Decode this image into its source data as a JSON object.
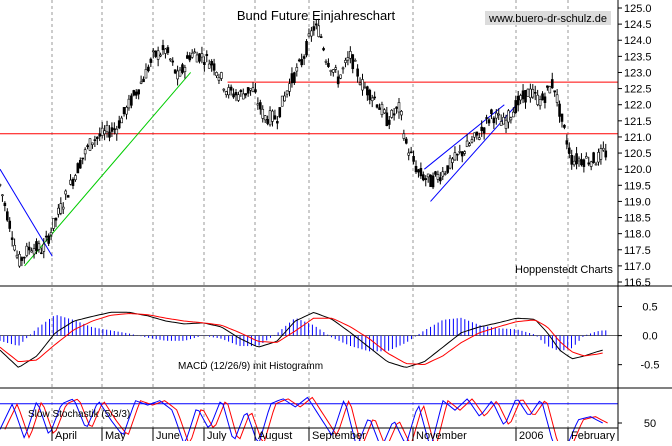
{
  "chart_data": [
    {
      "panel": "price",
      "type": "candlestick",
      "title": "Bund Future Einjahreschart",
      "watermark": "www.buero-dr-schulz.de",
      "credit": "Hoppenstedt Charts",
      "ylim": [
        116.5,
        125.0
      ],
      "yticks": [
        "116.5",
        "117.0",
        "117.5",
        "118.0",
        "118.5",
        "119.0",
        "119.5",
        "120.0",
        "120.5",
        "121.0",
        "121.5",
        "122.0",
        "122.5",
        "123.0",
        "123.5",
        "124.0",
        "124.5",
        "125.0"
      ],
      "months": [
        "April",
        "May",
        "June",
        "July",
        "August",
        "September",
        "November",
        "2006",
        "February"
      ],
      "horizontal_lines": [
        {
          "value": 122.7,
          "from_fraction": 0.37,
          "color": "#ff0000"
        },
        {
          "value": 121.1,
          "from_fraction": 0.0,
          "color": "#ff0000"
        }
      ],
      "trend_lines": [
        {
          "color": "#00cc00",
          "points": [
            [
              0.04,
              117.0
            ],
            [
              0.31,
              123.0
            ]
          ]
        },
        {
          "color": "#0000ff",
          "points": [
            [
              0.0,
              120.0
            ],
            [
              0.085,
              117.3
            ]
          ]
        },
        {
          "color": "#0000ff",
          "points": [
            [
              0.7,
              119.0
            ],
            [
              0.84,
              122.0
            ]
          ]
        },
        {
          "color": "#0000ff",
          "points": [
            [
              0.69,
              120.0
            ],
            [
              0.82,
              122.0
            ]
          ]
        }
      ],
      "price_path": [
        [
          0.0,
          119.5
        ],
        [
          0.02,
          118.0
        ],
        [
          0.03,
          117.1
        ],
        [
          0.05,
          117.6
        ],
        [
          0.07,
          117.5
        ],
        [
          0.09,
          118.4
        ],
        [
          0.11,
          119.3
        ],
        [
          0.13,
          120.2
        ],
        [
          0.15,
          120.9
        ],
        [
          0.17,
          121.1
        ],
        [
          0.19,
          121.3
        ],
        [
          0.21,
          122.0
        ],
        [
          0.23,
          122.7
        ],
        [
          0.25,
          123.5
        ],
        [
          0.27,
          123.7
        ],
        [
          0.29,
          122.8
        ],
        [
          0.31,
          123.6
        ],
        [
          0.33,
          123.5
        ],
        [
          0.35,
          123.2
        ],
        [
          0.37,
          122.4
        ],
        [
          0.39,
          122.3
        ],
        [
          0.41,
          122.5
        ],
        [
          0.43,
          121.6
        ],
        [
          0.45,
          121.6
        ],
        [
          0.47,
          122.6
        ],
        [
          0.49,
          123.3
        ],
        [
          0.51,
          124.4
        ],
        [
          0.52,
          124.3
        ],
        [
          0.53,
          123.5
        ],
        [
          0.55,
          122.8
        ],
        [
          0.57,
          123.5
        ],
        [
          0.59,
          122.6
        ],
        [
          0.61,
          122.2
        ],
        [
          0.63,
          121.5
        ],
        [
          0.65,
          121.9
        ],
        [
          0.66,
          120.8
        ],
        [
          0.68,
          119.9
        ],
        [
          0.7,
          119.6
        ],
        [
          0.72,
          119.9
        ],
        [
          0.74,
          120.3
        ],
        [
          0.76,
          120.7
        ],
        [
          0.78,
          121.1
        ],
        [
          0.8,
          121.7
        ],
        [
          0.82,
          121.4
        ],
        [
          0.84,
          122.0
        ],
        [
          0.86,
          122.4
        ],
        [
          0.88,
          122.1
        ],
        [
          0.9,
          122.7
        ],
        [
          0.91,
          121.8
        ],
        [
          0.92,
          121.0
        ],
        [
          0.93,
          120.3
        ],
        [
          0.95,
          120.3
        ],
        [
          0.97,
          120.3
        ],
        [
          0.98,
          120.5
        ]
      ]
    },
    {
      "panel": "macd",
      "type": "line+histogram",
      "label": "MACD (12/26/9) mit Histogramm",
      "ylim": [
        -0.85,
        0.75
      ],
      "yticks": [
        "0.5",
        "0.0",
        "-0.5"
      ],
      "macd_path": [
        [
          0.0,
          -0.25
        ],
        [
          0.03,
          -0.55
        ],
        [
          0.06,
          -0.35
        ],
        [
          0.09,
          0.05
        ],
        [
          0.12,
          0.25
        ],
        [
          0.15,
          0.33
        ],
        [
          0.18,
          0.4
        ],
        [
          0.21,
          0.4
        ],
        [
          0.24,
          0.34
        ],
        [
          0.27,
          0.25
        ],
        [
          0.3,
          0.2
        ],
        [
          0.33,
          0.22
        ],
        [
          0.36,
          0.15
        ],
        [
          0.39,
          -0.05
        ],
        [
          0.42,
          -0.2
        ],
        [
          0.45,
          -0.1
        ],
        [
          0.48,
          0.25
        ],
        [
          0.51,
          0.4
        ],
        [
          0.54,
          0.28
        ],
        [
          0.57,
          0.05
        ],
        [
          0.6,
          -0.2
        ],
        [
          0.63,
          -0.45
        ],
        [
          0.66,
          -0.55
        ],
        [
          0.69,
          -0.45
        ],
        [
          0.72,
          -0.2
        ],
        [
          0.75,
          0.05
        ],
        [
          0.78,
          0.15
        ],
        [
          0.81,
          0.22
        ],
        [
          0.84,
          0.3
        ],
        [
          0.87,
          0.28
        ],
        [
          0.89,
          0.05
        ],
        [
          0.91,
          -0.25
        ],
        [
          0.93,
          -0.4
        ],
        [
          0.95,
          -0.35
        ],
        [
          0.97,
          -0.28
        ],
        [
          0.98,
          -0.25
        ]
      ],
      "signal_path": [
        [
          0.0,
          -0.2
        ],
        [
          0.03,
          -0.45
        ],
        [
          0.06,
          -0.42
        ],
        [
          0.09,
          -0.15
        ],
        [
          0.12,
          0.1
        ],
        [
          0.15,
          0.25
        ],
        [
          0.18,
          0.35
        ],
        [
          0.21,
          0.38
        ],
        [
          0.24,
          0.36
        ],
        [
          0.27,
          0.3
        ],
        [
          0.3,
          0.25
        ],
        [
          0.33,
          0.22
        ],
        [
          0.36,
          0.18
        ],
        [
          0.39,
          0.05
        ],
        [
          0.42,
          -0.1
        ],
        [
          0.45,
          -0.12
        ],
        [
          0.48,
          0.08
        ],
        [
          0.51,
          0.3
        ],
        [
          0.54,
          0.3
        ],
        [
          0.57,
          0.15
        ],
        [
          0.6,
          -0.05
        ],
        [
          0.63,
          -0.3
        ],
        [
          0.66,
          -0.48
        ],
        [
          0.69,
          -0.5
        ],
        [
          0.72,
          -0.35
        ],
        [
          0.75,
          -0.12
        ],
        [
          0.78,
          0.05
        ],
        [
          0.81,
          0.15
        ],
        [
          0.84,
          0.24
        ],
        [
          0.87,
          0.27
        ],
        [
          0.89,
          0.15
        ],
        [
          0.91,
          -0.1
        ],
        [
          0.93,
          -0.28
        ],
        [
          0.95,
          -0.35
        ],
        [
          0.97,
          -0.32
        ],
        [
          0.98,
          -0.3
        ]
      ]
    },
    {
      "panel": "stochastic",
      "type": "line",
      "label": "Slow Stochastik (5/3/3)",
      "ylim": [
        0,
        100
      ],
      "yticks": [
        "50"
      ],
      "reference_lines": [
        20,
        80
      ],
      "stoch_path": [
        [
          0.0,
          40
        ],
        [
          0.02,
          80
        ],
        [
          0.04,
          25
        ],
        [
          0.06,
          85
        ],
        [
          0.08,
          30
        ],
        [
          0.1,
          80
        ],
        [
          0.12,
          88
        ],
        [
          0.14,
          40
        ],
        [
          0.16,
          85
        ],
        [
          0.18,
          55
        ],
        [
          0.2,
          30
        ],
        [
          0.22,
          85
        ],
        [
          0.24,
          78
        ],
        [
          0.26,
          85
        ],
        [
          0.28,
          70
        ],
        [
          0.3,
          15
        ],
        [
          0.32,
          75
        ],
        [
          0.34,
          40
        ],
        [
          0.36,
          88
        ],
        [
          0.38,
          20
        ],
        [
          0.4,
          70
        ],
        [
          0.42,
          15
        ],
        [
          0.44,
          80
        ],
        [
          0.46,
          88
        ],
        [
          0.48,
          75
        ],
        [
          0.5,
          90
        ],
        [
          0.52,
          60
        ],
        [
          0.54,
          30
        ],
        [
          0.56,
          88
        ],
        [
          0.58,
          12
        ],
        [
          0.6,
          60
        ],
        [
          0.62,
          10
        ],
        [
          0.64,
          55
        ],
        [
          0.66,
          15
        ],
        [
          0.68,
          80
        ],
        [
          0.7,
          10
        ],
        [
          0.72,
          85
        ],
        [
          0.74,
          70
        ],
        [
          0.76,
          88
        ],
        [
          0.78,
          60
        ],
        [
          0.8,
          85
        ],
        [
          0.82,
          45
        ],
        [
          0.84,
          90
        ],
        [
          0.86,
          60
        ],
        [
          0.88,
          88
        ],
        [
          0.9,
          15
        ],
        [
          0.92,
          10
        ],
        [
          0.94,
          55
        ],
        [
          0.96,
          60
        ],
        [
          0.98,
          50
        ]
      ]
    }
  ]
}
